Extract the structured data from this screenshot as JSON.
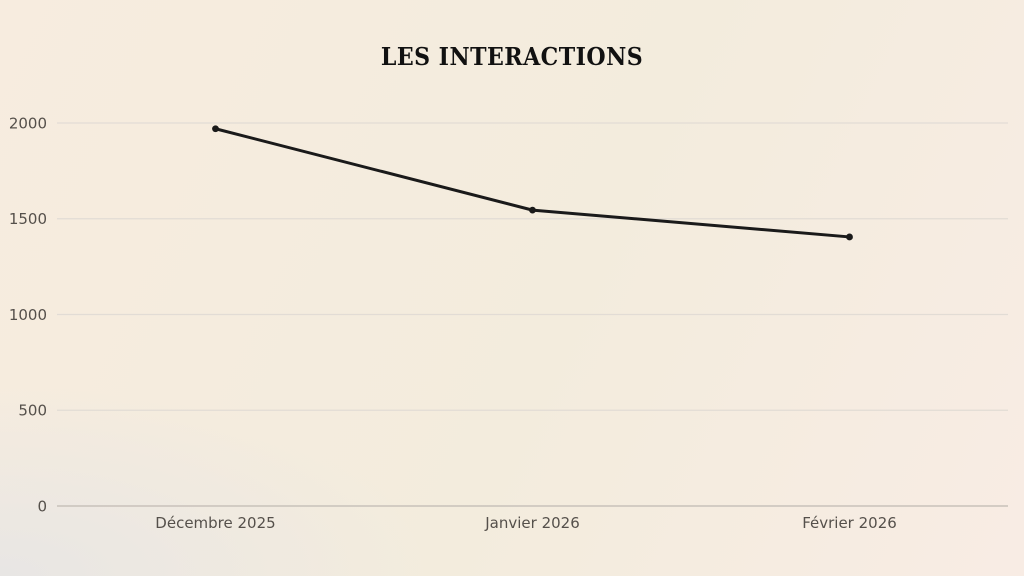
{
  "title": "LES INTERACTIONS",
  "colors": {
    "background_top_left": "#f7ecdf",
    "background_top_right": "#f3ecdd",
    "background_bottom_right": "#f8ece4",
    "background_bottom_left": "#e8e6e4",
    "title": "#111111",
    "line": "#1a1a1a",
    "marker": "#1a1a1a",
    "grid": "#e2dcd5",
    "axis": "#c8c1ba",
    "tick_label": "#55504b"
  },
  "chart_data": {
    "type": "line",
    "title": "LES INTERACTIONS",
    "categories": [
      "Décembre 2025",
      "Janvier 2026",
      "Février 2026"
    ],
    "series": [
      {
        "name": "Interactions",
        "values": [
          1970,
          1545,
          1405
        ]
      }
    ],
    "xlabel": "",
    "ylabel": "",
    "ylim": [
      0,
      2000
    ],
    "yticks": [
      0,
      500,
      1000,
      1500,
      2000
    ],
    "grid": "horizontal",
    "legend": "none",
    "markers": true
  }
}
